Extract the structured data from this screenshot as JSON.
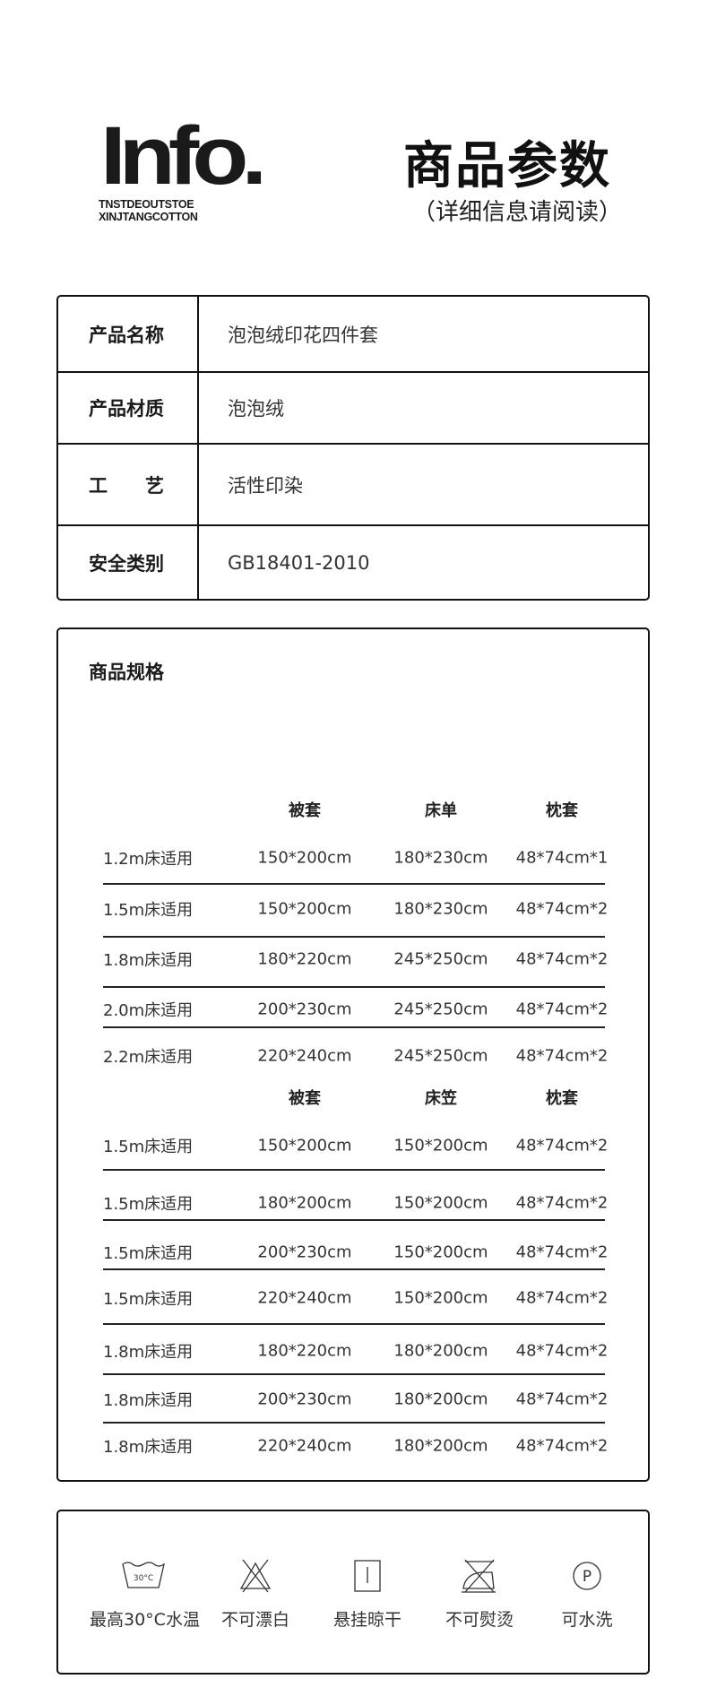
{
  "header": {
    "logo": "Info.",
    "tagline_1": "TNSTDEOUTSTOE",
    "tagline_2": "XINJTANGCOTTON",
    "title": "商品参数",
    "subtitle": "（详细信息请阅读）"
  },
  "params": [
    {
      "key": "产品名称",
      "value": "泡泡绒印花四件套"
    },
    {
      "key": "产品材质",
      "value": "泡泡绒"
    },
    {
      "key": "工　　艺",
      "value": "活性印染"
    },
    {
      "key": "安全类别",
      "value": "GB18401-2010"
    }
  ],
  "specs": {
    "title": "商品规格",
    "group1": {
      "headers": [
        "被套",
        "床单",
        "枕套"
      ],
      "rows": [
        [
          "1.2m床适用",
          "150*200cm",
          "180*230cm",
          "48*74cm*1"
        ],
        [
          "1.5m床适用",
          "150*200cm",
          "180*230cm",
          "48*74cm*2"
        ],
        [
          "1.8m床适用",
          "180*220cm",
          "245*250cm",
          "48*74cm*2"
        ],
        [
          "2.0m床适用",
          "200*230cm",
          "245*250cm",
          "48*74cm*2"
        ],
        [
          "2.2m床适用",
          "220*240cm",
          "245*250cm",
          "48*74cm*2"
        ]
      ]
    },
    "group2": {
      "headers": [
        "被套",
        "床笠",
        "枕套"
      ],
      "rows": [
        [
          "1.5m床适用",
          "150*200cm",
          "150*200cm",
          "48*74cm*2"
        ],
        [
          "1.5m床适用",
          "180*200cm",
          "150*200cm",
          "48*74cm*2"
        ],
        [
          "1.5m床适用",
          "200*230cm",
          "150*200cm",
          "48*74cm*2"
        ],
        [
          "1.5m床适用",
          "220*240cm",
          "150*200cm",
          "48*74cm*2"
        ],
        [
          "1.8m床适用",
          "180*220cm",
          "180*200cm",
          "48*74cm*2"
        ],
        [
          "1.8m床适用",
          "200*230cm",
          "180*200cm",
          "48*74cm*2"
        ],
        [
          "1.8m床适用",
          "220*240cm",
          "180*200cm",
          "48*74cm*2"
        ]
      ]
    }
  },
  "care": [
    {
      "icon": "wash-30c-icon",
      "label": "最高30°C水温",
      "temp": "30°C"
    },
    {
      "icon": "no-bleach-icon",
      "label": "不可漂白"
    },
    {
      "icon": "hang-dry-icon",
      "label": "悬挂晾干"
    },
    {
      "icon": "no-iron-icon",
      "label": "不可熨烫"
    },
    {
      "icon": "dry-clean-p-icon",
      "label": "可水洗",
      "letter": "P"
    }
  ]
}
